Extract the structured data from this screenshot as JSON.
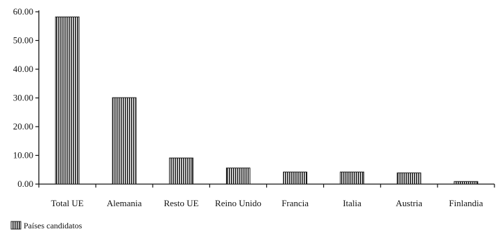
{
  "chart_data": {
    "type": "bar",
    "categories": [
      "Total UE",
      "Alemania",
      "Resto UE",
      "Reino Unido",
      "Francia",
      "Italia",
      "Austria",
      "Finlandia"
    ],
    "series": [
      {
        "name": "Países candidatos",
        "values": [
          58.2,
          30.1,
          9.1,
          5.6,
          4.2,
          4.2,
          3.9,
          0.9
        ],
        "color": "#1a1a1a"
      }
    ],
    "yticks": [
      "0.00",
      "10.00",
      "20.00",
      "30.00",
      "40.00",
      "50.00",
      "60.00"
    ],
    "ylim": [
      0,
      60
    ],
    "grid": false,
    "legend_placement": "bottom-left",
    "title": "",
    "xlabel": "",
    "ylabel": ""
  }
}
